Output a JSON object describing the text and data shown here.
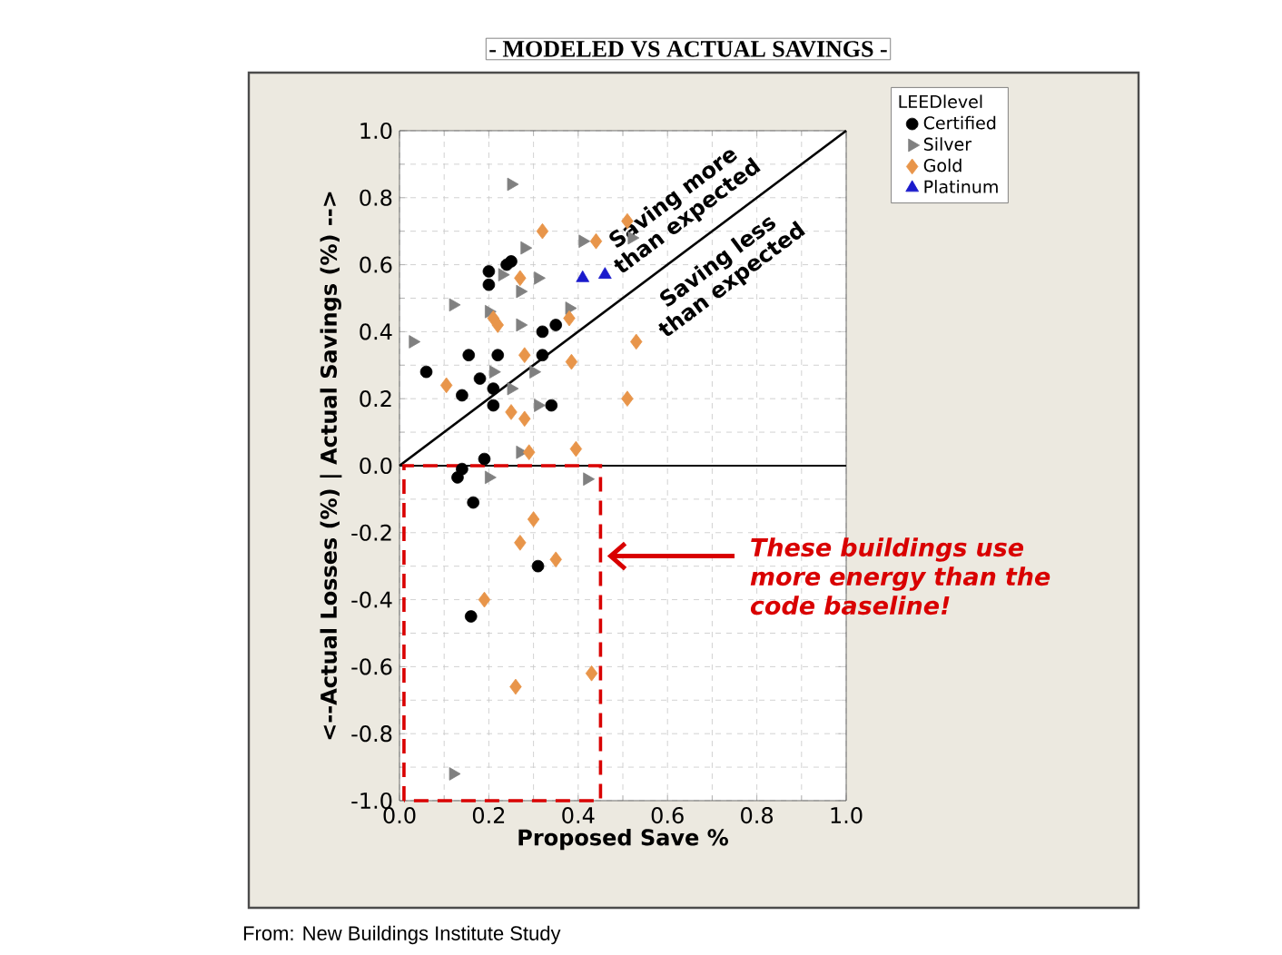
{
  "chart_data": {
    "type": "scatter",
    "title": "- MODELED VS ACTUAL SAVINGS -",
    "xlabel": "Proposed Save %",
    "ylabel": "<--Actual Losses (%)      |      Actual Savings (%) -->",
    "legend_title": "LEEDlevel",
    "legend": "top right",
    "grid": true,
    "xlim": [
      0,
      1
    ],
    "ylim": [
      -1,
      1
    ],
    "xticks": [
      {
        "value": 0,
        "label": "0.0"
      },
      {
        "value": 0.2,
        "label": "0.2"
      },
      {
        "value": 0.4,
        "label": "0.4"
      },
      {
        "value": 0.6,
        "label": "0.6"
      },
      {
        "value": 0.8,
        "label": "0.8"
      },
      {
        "value": 1,
        "label": "1.0"
      }
    ],
    "yticks": [
      {
        "value": -1,
        "label": "-1.0"
      },
      {
        "value": -0.8,
        "label": "-0.8"
      },
      {
        "value": -0.6,
        "label": "-0.6"
      },
      {
        "value": -0.4,
        "label": "-0.4"
      },
      {
        "value": -0.2,
        "label": "-0.2"
      },
      {
        "value": 0,
        "label": "0.0"
      },
      {
        "value": 0.2,
        "label": "0.2"
      },
      {
        "value": 0.4,
        "label": "0.4"
      },
      {
        "value": 0.6,
        "label": "0.6"
      },
      {
        "value": 0.8,
        "label": "0.8"
      },
      {
        "value": 1,
        "label": "1.0"
      }
    ],
    "series": [
      {
        "name": "Certified",
        "color": "#000000",
        "marker": "circle",
        "x": [
          0.06,
          0.155,
          0.14,
          0.2,
          0.2,
          0.24,
          0.25,
          0.18,
          0.22,
          0.21,
          0.21,
          0.32,
          0.35,
          0.32,
          0.34,
          0.19,
          0.14,
          0.13,
          0.165,
          0.31,
          0.16
        ],
        "values": [
          0.28,
          0.33,
          0.21,
          0.58,
          0.54,
          0.6,
          0.61,
          0.26,
          0.33,
          0.23,
          0.18,
          0.4,
          0.42,
          0.33,
          0.18,
          0.02,
          -0.01,
          -0.035,
          -0.11,
          -0.3,
          -0.45
        ]
      },
      {
        "name": "Silver",
        "color": "#808080",
        "marker": "triangle-right",
        "x": [
          0.03,
          0.12,
          0.25,
          0.28,
          0.23,
          0.2,
          0.27,
          0.27,
          0.31,
          0.38,
          0.41,
          0.52,
          0.21,
          0.25,
          0.3,
          0.31,
          0.27,
          0.2,
          0.42,
          0.12
        ],
        "values": [
          0.37,
          0.48,
          0.84,
          0.65,
          0.57,
          0.46,
          0.42,
          0.52,
          0.56,
          0.47,
          0.67,
          0.68,
          0.28,
          0.23,
          0.28,
          0.18,
          0.04,
          -0.035,
          -0.04,
          -0.92
        ]
      },
      {
        "name": "Gold",
        "color": "#e8954a",
        "marker": "diamond",
        "x": [
          0.32,
          0.44,
          0.51,
          0.27,
          0.21,
          0.22,
          0.28,
          0.38,
          0.385,
          0.53,
          0.51,
          0.105,
          0.25,
          0.28,
          0.29,
          0.395,
          0.3,
          0.27,
          0.35,
          0.19,
          0.26,
          0.43
        ],
        "values": [
          0.7,
          0.67,
          0.73,
          0.56,
          0.44,
          0.42,
          0.33,
          0.44,
          0.31,
          0.37,
          0.2,
          0.24,
          0.16,
          0.14,
          0.04,
          0.05,
          -0.16,
          -0.23,
          -0.28,
          -0.4,
          -0.66,
          -0.62
        ]
      },
      {
        "name": "Platinum",
        "color": "#1a1acc",
        "marker": "triangle",
        "x": [
          0.41,
          0.46
        ],
        "values": [
          0.56,
          0.57
        ]
      },
      {
        "type": "line",
        "color": "#000000",
        "marker": "none",
        "x": [
          0,
          1
        ],
        "values": [
          0,
          1
        ]
      }
    ],
    "ref_lines": [
      {
        "axis": "y",
        "value": 0,
        "color": "#000000"
      }
    ],
    "annotations": [
      "Saving more than expected",
      "Saving less than expected",
      "These buildings use more energy than the code baseline!",
      "From: New Buildings Institute Study"
    ]
  }
}
